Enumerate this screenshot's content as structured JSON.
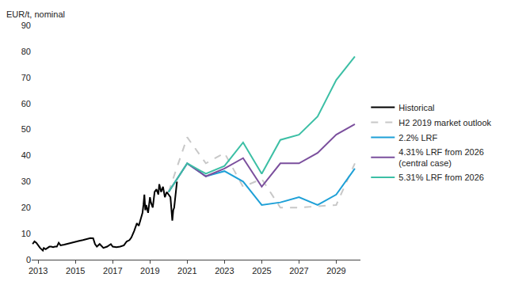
{
  "chart_data": {
    "type": "line",
    "ylabel": "EUR/t, nominal",
    "xlim": [
      2012.65,
      2030.3
    ],
    "xticks": [
      2013,
      2015,
      2017,
      2019,
      2021,
      2023,
      2025,
      2027,
      2029
    ],
    "ylim": [
      0,
      90
    ],
    "yticks": [
      0,
      10,
      20,
      30,
      40,
      50,
      60,
      70,
      80,
      90
    ],
    "grid": false,
    "legend": "right",
    "series": [
      {
        "name": "Historical",
        "color": "#000000",
        "line_style": "solid",
        "x": [
          2012.7,
          2012.8,
          2012.9,
          2013.0,
          2013.1,
          2013.25,
          2013.3,
          2013.4,
          2013.5,
          2013.6,
          2013.7,
          2013.8,
          2013.9,
          2014.0,
          2014.1,
          2014.2,
          2014.4,
          2014.6,
          2014.8,
          2015.0,
          2015.2,
          2015.4,
          2015.6,
          2015.8,
          2015.95,
          2016.05,
          2016.15,
          2016.3,
          2016.5,
          2016.7,
          2016.9,
          2017.0,
          2017.2,
          2017.4,
          2017.6,
          2017.75,
          2017.9,
          2018.0,
          2018.15,
          2018.3,
          2018.4,
          2018.5,
          2018.6,
          2018.65,
          2018.7,
          2018.75,
          2018.8,
          2018.9,
          2019.0,
          2019.05,
          2019.15,
          2019.25,
          2019.35,
          2019.45,
          2019.5,
          2019.6,
          2019.7,
          2019.8,
          2019.9,
          2020.0,
          2020.1,
          2020.2,
          2020.25,
          2020.3,
          2020.38,
          2020.45
        ],
        "values": [
          6,
          7,
          6.5,
          5.5,
          4.5,
          3.5,
          4.5,
          4,
          4.5,
          5,
          5,
          4.8,
          5,
          5,
          6.5,
          5.5,
          5.8,
          6.2,
          6.5,
          7,
          7.2,
          7.5,
          8,
          8.3,
          8.2,
          6,
          5,
          6,
          4.5,
          5,
          6,
          5,
          4.8,
          5,
          5.5,
          7,
          7.5,
          8.5,
          11,
          14,
          13,
          15.5,
          18,
          21,
          25,
          19,
          21,
          18,
          24,
          22,
          20,
          26,
          27,
          25,
          29,
          26,
          28,
          24,
          26,
          25,
          24,
          15,
          19,
          20,
          26,
          30
        ]
      },
      {
        "name": "H2 2019 market outlook",
        "color": "#c8c8c8",
        "line_style": "dash",
        "x": [
          2020,
          2021,
          2022,
          2023,
          2024,
          2025,
          2026,
          2027,
          2028,
          2029,
          2030
        ],
        "values": [
          26,
          47,
          37,
          41,
          28,
          31,
          20,
          20,
          20.5,
          21,
          37
        ]
      },
      {
        "name": "2.2% LRF",
        "color": "#1ea0d7",
        "line_style": "solid",
        "x": [
          2020,
          2021,
          2022,
          2023,
          2024,
          2025,
          2026,
          2027,
          2028,
          2029,
          2030
        ],
        "values": [
          26,
          37,
          32,
          34,
          30,
          21,
          22,
          24,
          21,
          25,
          35
        ]
      },
      {
        "name": "4.31% LRF from 2026 (central case)",
        "color": "#7b4f9d",
        "line_style": "solid",
        "x": [
          2020,
          2021,
          2022,
          2023,
          2024,
          2025,
          2026,
          2027,
          2028,
          2029,
          2030
        ],
        "values": [
          26,
          37,
          32,
          35,
          39,
          28,
          37,
          37,
          41,
          48,
          52
        ]
      },
      {
        "name": "5.31% LRF from 2026",
        "color": "#3cbfa5",
        "line_style": "solid",
        "x": [
          2020,
          2021,
          2022,
          2023,
          2024,
          2025,
          2026,
          2027,
          2028,
          2029,
          2030
        ],
        "values": [
          26,
          37,
          33,
          36,
          45,
          33,
          46,
          48,
          55,
          69,
          78
        ]
      }
    ]
  }
}
